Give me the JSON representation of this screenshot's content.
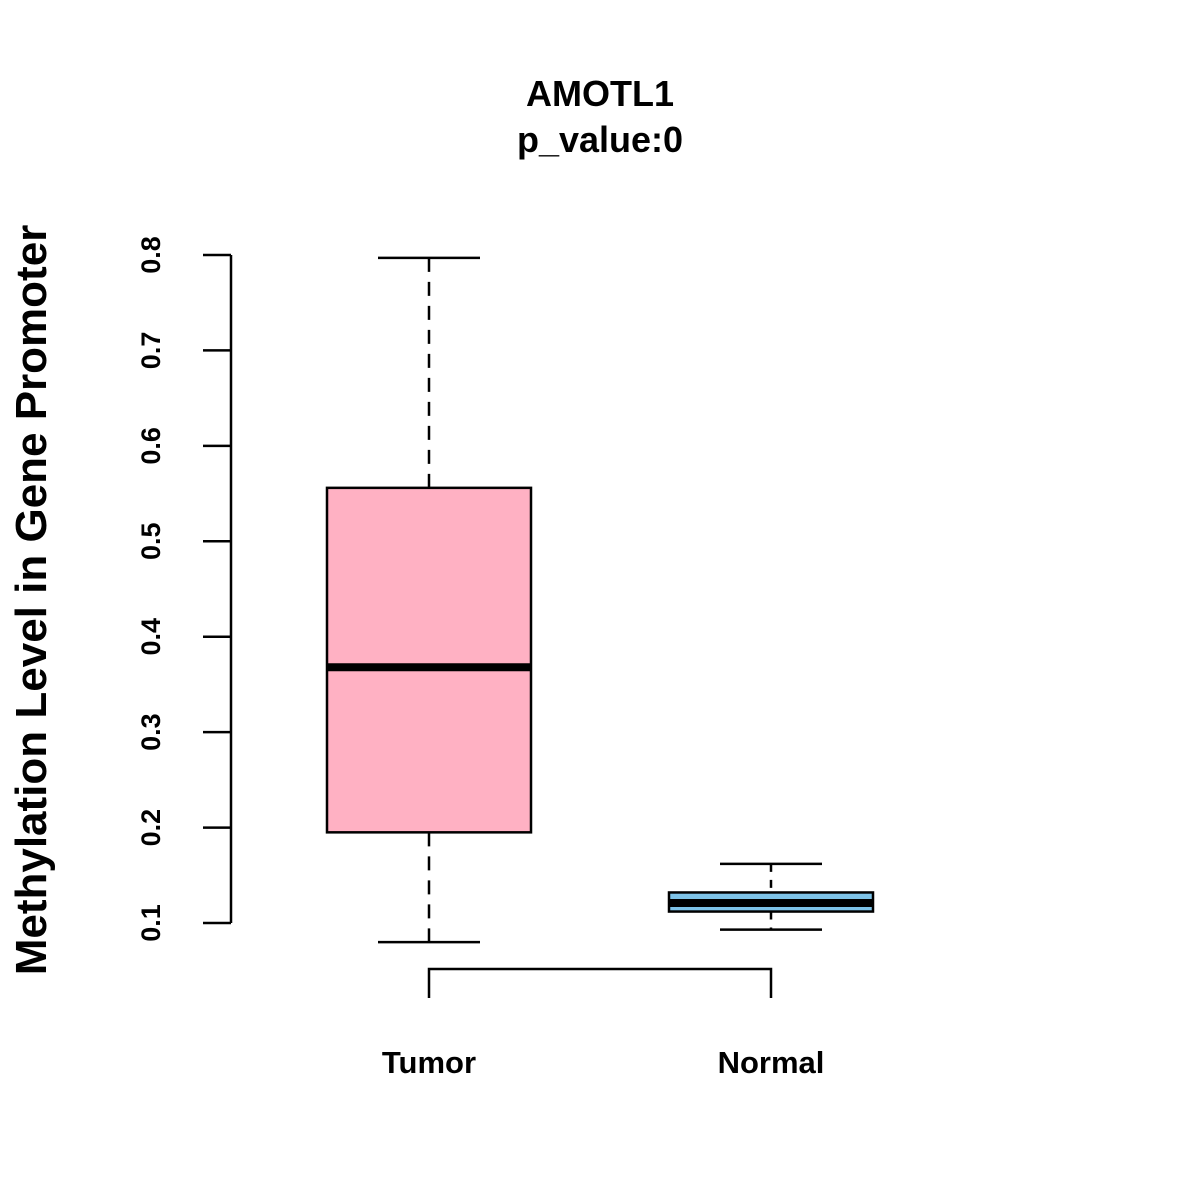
{
  "chart_data": {
    "type": "boxplot",
    "title": "AMOTL1",
    "subtitle": "p_value:0",
    "xlabel": "",
    "ylabel": "Methylation Level in Gene Promoter",
    "ylim": [
      0.1,
      0.8
    ],
    "yticks": [
      0.1,
      0.2,
      0.3,
      0.4,
      0.5,
      0.6,
      0.7,
      0.8
    ],
    "ytick_labels": [
      "0.1",
      "0.2",
      "0.3",
      "0.4",
      "0.5",
      "0.6",
      "0.7",
      "0.8"
    ],
    "categories": [
      "Tumor",
      "Normal"
    ],
    "boxes": [
      {
        "name": "Tumor",
        "whisker_low": 0.08,
        "q1": 0.195,
        "median": 0.368,
        "q3": 0.556,
        "whisker_high": 0.797,
        "fill": "#FFB1C3"
      },
      {
        "name": "Normal",
        "whisker_low": 0.093,
        "q1": 0.112,
        "median": 0.121,
        "q3": 0.132,
        "whisker_high": 0.162,
        "fill": "#7EC3E8"
      }
    ],
    "comparison_bracket": [
      "Tumor",
      "Normal"
    ],
    "grid": false
  }
}
